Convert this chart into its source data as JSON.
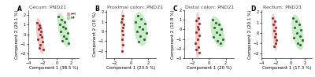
{
  "panels": [
    {
      "label": "A",
      "title": "Cecum: PND21",
      "xlabel": "Component 1 (38.5 %)",
      "ylabel": "Component 2 (20.1 %)",
      "hm_points": [
        [
          -2.8,
          1.2
        ],
        [
          -2.5,
          0.9
        ],
        [
          -2.3,
          0.7
        ],
        [
          -2.6,
          0.5
        ],
        [
          -2.2,
          0.3
        ],
        [
          -2.4,
          0.0
        ],
        [
          -2.1,
          -0.3
        ],
        [
          -2.7,
          -0.5
        ],
        [
          -2.0,
          -0.8
        ],
        [
          -2.3,
          -1.1
        ],
        [
          -2.5,
          -1.4
        ],
        [
          -1.9,
          -1.6
        ]
      ],
      "mf_points": [
        [
          0.2,
          1.8
        ],
        [
          0.6,
          1.5
        ],
        [
          1.0,
          1.3
        ],
        [
          0.4,
          1.0
        ],
        [
          0.8,
          0.8
        ],
        [
          1.2,
          0.6
        ],
        [
          0.5,
          0.3
        ],
        [
          1.5,
          0.1
        ],
        [
          0.9,
          -0.2
        ],
        [
          1.3,
          -0.4
        ],
        [
          0.7,
          -0.7
        ],
        [
          1.6,
          -0.9
        ]
      ],
      "xlim": [
        -4,
        3
      ],
      "ylim": [
        -2.5,
        2.5
      ],
      "show_legend": true
    },
    {
      "label": "B",
      "title": "Proximal colon: PND21",
      "xlabel": "Component 1 (23.5 %)",
      "ylabel": "Component 2 (10 %)",
      "hm_points": [
        [
          -1.0,
          1.6
        ],
        [
          -1.1,
          1.3
        ],
        [
          -1.2,
          1.0
        ],
        [
          -0.9,
          0.7
        ],
        [
          -1.0,
          0.4
        ],
        [
          -1.1,
          0.1
        ],
        [
          -1.0,
          -0.3
        ],
        [
          -1.1,
          -0.8
        ],
        [
          -1.0,
          -1.4
        ],
        [
          -1.1,
          -2.0
        ]
      ],
      "mf_points": [
        [
          0.8,
          1.6
        ],
        [
          1.2,
          1.3
        ],
        [
          0.5,
          1.0
        ],
        [
          1.6,
          0.8
        ],
        [
          1.0,
          0.5
        ],
        [
          1.4,
          0.2
        ],
        [
          0.7,
          0.0
        ],
        [
          1.8,
          -0.2
        ],
        [
          1.1,
          -0.5
        ],
        [
          1.5,
          -0.8
        ],
        [
          0.9,
          -1.1
        ]
      ],
      "xlim": [
        -3,
        3
      ],
      "ylim": [
        -2.8,
        2.2
      ],
      "show_legend": false
    },
    {
      "label": "C",
      "title": "Distal colon: PND21",
      "xlabel": "Component 1 (20 %)",
      "ylabel": "Component 2 (12.8 %)",
      "hm_points": [
        [
          -1.3,
          1.2
        ],
        [
          -1.5,
          0.9
        ],
        [
          -1.2,
          0.6
        ],
        [
          -1.4,
          0.3
        ],
        [
          -1.3,
          0.0
        ],
        [
          -1.5,
          -0.3
        ],
        [
          -1.2,
          -0.6
        ],
        [
          -1.4,
          -1.0
        ],
        [
          -1.6,
          -1.4
        ],
        [
          -1.3,
          -1.8
        ],
        [
          -1.5,
          -2.1
        ],
        [
          -1.2,
          -2.4
        ]
      ],
      "mf_points": [
        [
          0.4,
          1.0
        ],
        [
          0.8,
          0.7
        ],
        [
          1.2,
          0.5
        ],
        [
          0.6,
          0.2
        ],
        [
          1.5,
          0.0
        ],
        [
          0.9,
          -0.3
        ],
        [
          1.3,
          -0.5
        ],
        [
          0.5,
          -0.8
        ],
        [
          1.7,
          -1.0
        ],
        [
          1.0,
          -1.2
        ],
        [
          1.4,
          -1.4
        ]
      ],
      "xlim": [
        -3,
        3
      ],
      "ylim": [
        -3.0,
        2.0
      ],
      "show_legend": false
    },
    {
      "label": "D",
      "title": "Rectum: PND21",
      "xlabel": "Component 1 (17.3 %)",
      "ylabel": "Component 2 (20.1 %)",
      "hm_points": [
        [
          -2.5,
          1.4
        ],
        [
          -2.2,
          1.1
        ],
        [
          -2.4,
          0.8
        ],
        [
          -2.1,
          0.5
        ],
        [
          -2.3,
          0.2
        ],
        [
          -2.0,
          -0.1
        ],
        [
          -2.2,
          -0.4
        ],
        [
          -1.9,
          -0.7
        ],
        [
          -2.1,
          -1.0
        ],
        [
          -2.3,
          -1.3
        ]
      ],
      "mf_points": [
        [
          0.4,
          1.4
        ],
        [
          0.8,
          1.1
        ],
        [
          1.2,
          0.8
        ],
        [
          0.6,
          0.5
        ],
        [
          1.5,
          0.3
        ],
        [
          0.9,
          0.0
        ],
        [
          1.3,
          -0.3
        ],
        [
          0.5,
          -0.5
        ],
        [
          1.7,
          -0.7
        ],
        [
          1.0,
          -1.0
        ],
        [
          1.4,
          -1.2
        ]
      ],
      "xlim": [
        -4,
        3
      ],
      "ylim": [
        -2.5,
        2.2
      ],
      "show_legend": false
    }
  ],
  "hm_color": "#8b1a1a",
  "mf_color": "#1a5c1a",
  "hm_ellipse_color": "#e8a0a0",
  "mf_ellipse_color": "#a0dba0",
  "bg_color": "#ffffff",
  "point_size": 5,
  "legend_labels": [
    "HM",
    "MF"
  ],
  "title_fontsize": 4.5,
  "label_fontsize": 4.0,
  "tick_fontsize": 3.5,
  "ellipse_alpha": 0.55,
  "ellipse_n_std": 2.0
}
